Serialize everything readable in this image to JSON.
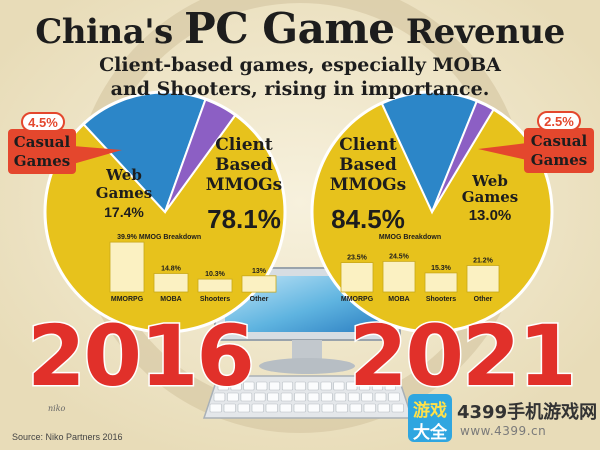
{
  "header": {
    "title_part1": "China's",
    "title_part2": "PC Game",
    "title_part3": "Revenue",
    "subtitle_line1": "Client-based games, especially MOBA",
    "subtitle_line2": "and Shooters, rising in importance."
  },
  "source": "Source: Niko Partners 2016",
  "logo_text": "niko",
  "watermark": {
    "badge_line1": "游戏",
    "badge_line2": "大全",
    "text1": "4399手机游戏网",
    "text2": "www.4399.cn"
  },
  "colors": {
    "client": "#e7c21c",
    "web": "#2c86c8",
    "casual": "#8c5fc4",
    "callout": "#e4472d",
    "year": "#e1302a",
    "bar_fill": "#fbf1c2"
  },
  "chart_data": [
    {
      "type": "pie",
      "year": "2016",
      "slices": [
        {
          "name": "Client Based MMOGs",
          "value": 78.1,
          "label": "78.1%"
        },
        {
          "name": "Web Games",
          "value": 17.4,
          "label": "17.4%"
        },
        {
          "name": "Casual Games",
          "value": 4.5,
          "label": "4.5%"
        }
      ],
      "breakdown": {
        "type": "bar",
        "title": "MMOG Breakdown",
        "categories": [
          "MMORPG",
          "MOBA",
          "Shooters",
          "Other"
        ],
        "values": [
          39.9,
          14.8,
          10.3,
          13
        ],
        "labels": [
          "39.9%",
          "14.8%",
          "10.3%",
          "13%"
        ]
      }
    },
    {
      "type": "pie",
      "year": "2021",
      "slices": [
        {
          "name": "Client Based MMOGs",
          "value": 84.5,
          "label": "84.5%"
        },
        {
          "name": "Web Games",
          "value": 13.0,
          "label": "13.0%"
        },
        {
          "name": "Casual Games",
          "value": 2.5,
          "label": "2.5%"
        }
      ],
      "breakdown": {
        "type": "bar",
        "title": "MMOG Breakdown",
        "categories": [
          "MMORPG",
          "MOBA",
          "Shooters",
          "Other"
        ],
        "values": [
          23.5,
          24.5,
          15.3,
          21.2
        ],
        "labels": [
          "23.5%",
          "24.5%",
          "15.3%",
          "21.2%"
        ]
      }
    }
  ]
}
